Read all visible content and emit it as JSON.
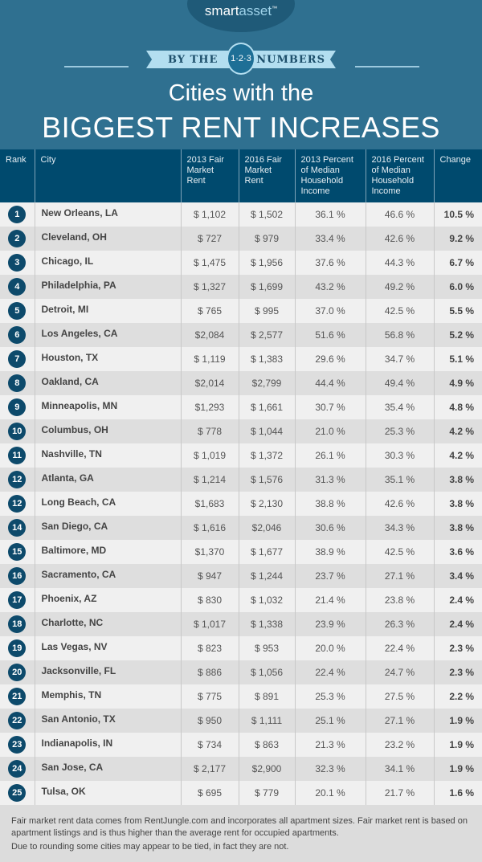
{
  "brand": {
    "part1": "smart",
    "part2": "asset",
    "tm": "™"
  },
  "ribbon": {
    "left": "BY THE",
    "badge": "1·2·3",
    "right": "NUMBERS"
  },
  "title": {
    "line1": "Cities with the",
    "line2": "BIGGEST RENT INCREASES"
  },
  "colors": {
    "header_bg": "#2f7090",
    "table_header": "#004a6e",
    "rank_badge": "#0d4a6b"
  },
  "table": {
    "headers": [
      "Rank",
      "City",
      "2013 Fair Market Rent",
      "2016 Fair Market Rent",
      "2013 Percent of Median Household Income",
      "2016 Percent of Median Household Income",
      "Change"
    ],
    "rows": [
      [
        "1",
        "New Orleans, LA",
        "$ 1,102",
        "$ 1,502",
        "36.1 %",
        "46.6 %",
        "10.5 %"
      ],
      [
        "2",
        "Cleveland, OH",
        "$ 727",
        "$ 979",
        "33.4 %",
        "42.6 %",
        "9.2 %"
      ],
      [
        "3",
        "Chicago, IL",
        "$ 1,475",
        "$ 1,956",
        "37.6 %",
        "44.3 %",
        "6.7 %"
      ],
      [
        "4",
        "Philadelphia, PA",
        "$ 1,327",
        "$ 1,699",
        "43.2 %",
        "49.2 %",
        "6.0 %"
      ],
      [
        "5",
        "Detroit, MI",
        "$ 765",
        "$ 995",
        "37.0 %",
        "42.5 %",
        "5.5 %"
      ],
      [
        "6",
        "Los Angeles, CA",
        "$2,084",
        "$ 2,577",
        "51.6 %",
        "56.8 %",
        "5.2 %"
      ],
      [
        "7",
        "Houston, TX",
        "$ 1,119",
        "$ 1,383",
        "29.6 %",
        "34.7 %",
        "5.1 %"
      ],
      [
        "8",
        "Oakland, CA",
        "$2,014",
        "$2,799",
        "44.4 %",
        "49.4 %",
        "4.9 %"
      ],
      [
        "9",
        "Minneapolis, MN",
        "$1,293",
        "$ 1,661",
        "30.7 %",
        "35.4 %",
        "4.8 %"
      ],
      [
        "10",
        "Columbus, OH",
        "$ 778",
        "$ 1,044",
        "21.0 %",
        "25.3 %",
        "4.2 %"
      ],
      [
        "11",
        "Nashville, TN",
        "$ 1,019",
        "$ 1,372",
        "26.1 %",
        "30.3 %",
        "4.2 %"
      ],
      [
        "12",
        "Atlanta, GA",
        "$ 1,214",
        "$ 1,576",
        "31.3 %",
        "35.1 %",
        "3.8 %"
      ],
      [
        "12",
        "Long Beach, CA",
        "$1,683",
        "$ 2,130",
        "38.8 %",
        "42.6 %",
        "3.8 %"
      ],
      [
        "14",
        "San Diego, CA",
        "$ 1,616",
        "$2,046",
        "30.6 %",
        "34.3 %",
        "3.8 %"
      ],
      [
        "15",
        "Baltimore, MD",
        "$1,370",
        "$ 1,677",
        "38.9 %",
        "42.5 %",
        "3.6 %"
      ],
      [
        "16",
        "Sacramento, CA",
        "$ 947",
        "$ 1,244",
        "23.7 %",
        "27.1 %",
        "3.4 %"
      ],
      [
        "17",
        "Phoenix, AZ",
        "$ 830",
        "$ 1,032",
        "21.4 %",
        "23.8 %",
        "2.4 %"
      ],
      [
        "18",
        "Charlotte, NC",
        "$ 1,017",
        "$ 1,338",
        "23.9 %",
        "26.3 %",
        "2.4 %"
      ],
      [
        "19",
        "Las Vegas, NV",
        "$ 823",
        "$ 953",
        "20.0 %",
        "22.4 %",
        "2.3 %"
      ],
      [
        "20",
        "Jacksonville, FL",
        "$ 886",
        "$ 1,056",
        "22.4 %",
        "24.7 %",
        "2.3 %"
      ],
      [
        "21",
        "Memphis, TN",
        "$ 775",
        "$ 891",
        "25.3 %",
        "27.5 %",
        "2.2 %"
      ],
      [
        "22",
        "San Antonio, TX",
        "$ 950",
        "$ 1,111",
        "25.1 %",
        "27.1 %",
        "1.9 %"
      ],
      [
        "23",
        "Indianapolis, IN",
        "$ 734",
        "$ 863",
        "21.3 %",
        "23.2 %",
        "1.9 %"
      ],
      [
        "24",
        "San Jose, CA",
        "$ 2,177",
        "$2,900",
        "32.3 %",
        "34.1 %",
        "1.9 %"
      ],
      [
        "25",
        "Tulsa, OK",
        "$ 695",
        "$ 779",
        "20.1 %",
        "21.7 %",
        "1.6 %"
      ]
    ]
  },
  "footer": {
    "note1": "Fair market rent data comes from RentJungle.com and incorporates all apartment sizes. Fair market rent is based on apartment listings and is thus higher than the average rent for occupied apartments.",
    "note2": "Due to rounding some cities may appear to be tied, in fact they are not."
  }
}
